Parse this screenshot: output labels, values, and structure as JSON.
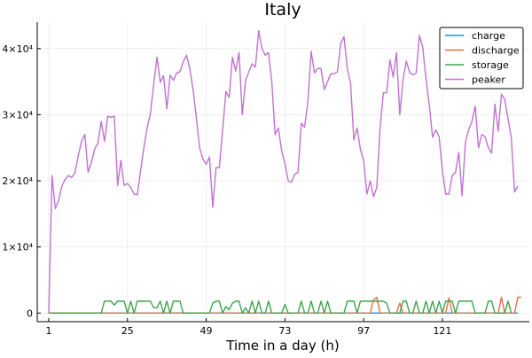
{
  "chart_data": {
    "type": "line",
    "title": "Italy",
    "xlabel": "Time in a day (h)",
    "ylabel": "",
    "x_ticks": [
      1,
      25,
      49,
      73,
      97,
      121
    ],
    "x_tick_labels": [
      "1",
      "25",
      "49",
      "73",
      "97",
      "121"
    ],
    "y_ticks": [
      0,
      10000,
      20000,
      30000,
      40000
    ],
    "y_tick_labels": [
      "0",
      "1×10⁴",
      "2×10⁴",
      "3×10⁴",
      "4×10⁴"
    ],
    "xlim": [
      -2.5,
      147.5
    ],
    "ylim": [
      -1300,
      44000
    ],
    "grid": true,
    "legend_position": "top-right",
    "series": [
      {
        "name": "charge",
        "color": "#009AFA",
        "y": [
          0,
          0,
          0,
          0,
          0,
          0,
          0,
          0,
          0,
          0,
          0,
          0,
          0,
          0,
          0,
          0,
          0,
          0,
          0,
          0,
          0,
          0,
          0,
          0,
          0,
          0,
          0,
          0,
          0,
          0,
          0,
          0,
          0,
          0,
          0,
          0,
          0,
          0,
          0,
          0,
          0,
          0,
          0,
          0,
          0,
          0,
          0,
          0,
          0,
          0,
          0,
          0,
          0,
          0,
          0,
          0,
          0,
          0,
          0,
          0,
          0,
          0,
          0,
          0,
          0,
          0,
          0,
          0,
          0,
          0,
          0,
          0,
          0,
          0,
          0,
          0,
          0,
          0,
          0,
          0,
          0,
          0,
          0,
          0,
          0,
          0,
          0,
          0,
          0,
          0,
          0,
          0,
          0,
          0,
          0,
          0,
          0,
          0,
          0,
          0,
          0,
          0,
          0,
          0,
          0,
          0,
          0,
          0,
          0,
          0,
          0,
          0,
          0,
          0,
          0,
          0,
          0,
          0,
          0,
          0,
          0,
          0,
          0,
          0,
          0,
          0,
          0,
          0,
          0,
          0,
          0,
          0,
          0,
          0,
          0,
          0,
          0,
          0,
          0,
          0,
          0,
          0,
          0,
          0
        ]
      },
      {
        "name": "discharge",
        "color": "#E36F47",
        "y": [
          0,
          0,
          0,
          0,
          0,
          0,
          0,
          0,
          0,
          0,
          0,
          0,
          0,
          0,
          0,
          0,
          0,
          0,
          0,
          0,
          0,
          0,
          0,
          0,
          0,
          0,
          0,
          0,
          0,
          0,
          0,
          0,
          0,
          0,
          0,
          0,
          0,
          0,
          0,
          0,
          0,
          0,
          0,
          0,
          0,
          0,
          0,
          0,
          0,
          0,
          0,
          0,
          0,
          0,
          0,
          0,
          0,
          0,
          0,
          0,
          0,
          0,
          0,
          0,
          0,
          0,
          0,
          0,
          0,
          0,
          0,
          0,
          0,
          0,
          0,
          0,
          0,
          0,
          0,
          0,
          0,
          0,
          0,
          0,
          0,
          0,
          0,
          0,
          0,
          0,
          0,
          0,
          0,
          0,
          0,
          0,
          0,
          0,
          0,
          2000,
          2400,
          0,
          0,
          0,
          0,
          0,
          0,
          1500,
          0,
          0,
          0,
          0,
          0,
          0,
          0,
          0,
          0,
          0,
          0,
          0,
          0,
          0,
          2300,
          0,
          0,
          0,
          0,
          0,
          0,
          0,
          0,
          0,
          0,
          0,
          0,
          0,
          0,
          0,
          2400,
          0,
          0,
          0,
          0,
          2400,
          2400
        ]
      },
      {
        "name": "storage",
        "color": "#3EA44E",
        "y": [
          0,
          0,
          0,
          0,
          0,
          0,
          0,
          0,
          0,
          0,
          0,
          0,
          0,
          0,
          0,
          0,
          0,
          1800,
          1800,
          1800,
          1200,
          1800,
          1800,
          1800,
          0,
          1800,
          0,
          1800,
          1800,
          1800,
          1800,
          1800,
          800,
          800,
          1800,
          0,
          1800,
          0,
          1800,
          1800,
          1800,
          0,
          0,
          0,
          0,
          0,
          0,
          0,
          0,
          0,
          1500,
          1800,
          1800,
          0,
          1000,
          500,
          1500,
          1800,
          1800,
          0,
          800,
          0,
          1800,
          0,
          1800,
          0,
          0,
          1800,
          0,
          0,
          0,
          0,
          1300,
          0,
          0,
          0,
          0,
          1800,
          0,
          0,
          1800,
          0,
          0,
          1800,
          0,
          1800,
          0,
          0,
          0,
          0,
          0,
          1800,
          1800,
          1800,
          0,
          1800,
          1800,
          1800,
          1800,
          1800,
          1800,
          1800,
          1800,
          1500,
          0,
          0,
          0,
          0,
          1800,
          1800,
          0,
          0,
          1800,
          0,
          0,
          1800,
          0,
          1800,
          0,
          1800,
          0,
          1800,
          1800,
          1800,
          0,
          1800,
          1800,
          1800,
          1800,
          1800,
          0,
          0,
          0,
          0,
          1800,
          1800,
          0,
          0,
          0,
          0,
          1800,
          0
        ]
      },
      {
        "name": "peaker",
        "color": "#C271D2",
        "y": [
          0,
          20800,
          15800,
          17000,
          19200,
          20200,
          20800,
          20500,
          21200,
          23800,
          26000,
          27000,
          21300,
          22800,
          24800,
          25700,
          29000,
          26000,
          29800,
          29600,
          29800,
          19300,
          23100,
          19300,
          19600,
          19000,
          18000,
          17900,
          21500,
          25000,
          28000,
          30200,
          34600,
          38700,
          34900,
          35900,
          30900,
          36000,
          35200,
          36300,
          36500,
          38000,
          39000,
          37000,
          33800,
          29600,
          25000,
          23300,
          22500,
          23600,
          16000,
          22000,
          22000,
          27600,
          33500,
          32600,
          38700,
          36600,
          39400,
          30000,
          35200,
          36500,
          37700,
          37200,
          42700,
          40000,
          39000,
          39400,
          35000,
          27000,
          28000,
          24600,
          22600,
          20000,
          19800,
          21000,
          21300,
          28700,
          28100,
          32000,
          39600,
          36300,
          37000,
          37000,
          33800,
          35000,
          36200,
          36200,
          36500,
          40800,
          41800,
          37000,
          34800,
          26200,
          28000,
          24800,
          23000,
          18000,
          20000,
          17600,
          19000,
          28000,
          33300,
          33300,
          38300,
          35700,
          39400,
          30000,
          35300,
          38100,
          36400,
          36000,
          36300,
          42000,
          40200,
          35400,
          31500,
          26600,
          27700,
          26700,
          21500,
          18000,
          18000,
          20800,
          21300,
          24300,
          17700,
          25800,
          27700,
          29000,
          31300,
          25000,
          27000,
          26700,
          25000,
          24200,
          31600,
          27500,
          33100,
          32300,
          29400,
          26500,
          18300,
          19200
        ]
      }
    ]
  }
}
